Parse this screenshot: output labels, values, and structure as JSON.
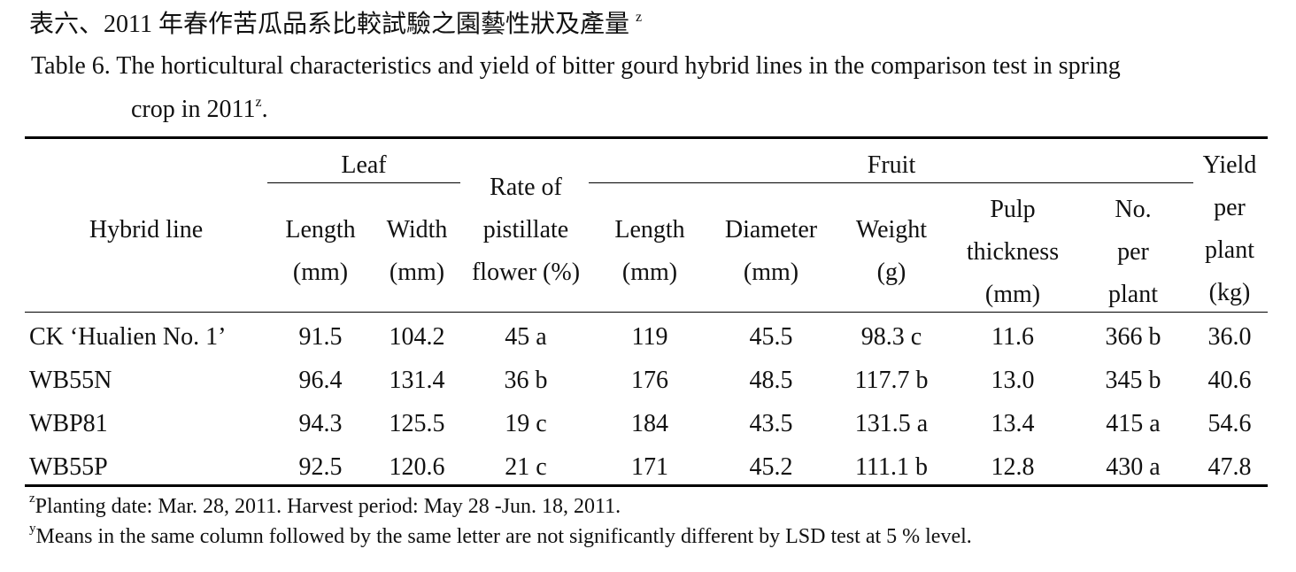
{
  "title": {
    "text": "表六、2011 年春作苦瓜品系比較試驗之園藝性狀及產量",
    "sup": "z"
  },
  "caption": {
    "label": "Table 6.",
    "lines": [
      "The horticultural characteristics and yield of bitter gourd hybrid lines in the comparison test in spring",
      "crop in 2011"
    ],
    "sup": "z",
    "end": "."
  },
  "table": {
    "groups": [
      {
        "label": "Leaf"
      },
      {
        "label": "Fruit"
      }
    ],
    "headers": [
      {
        "lines": [
          "Hybrid line"
        ]
      },
      {
        "lines": [
          "Length",
          "(mm)"
        ]
      },
      {
        "lines": [
          "Width",
          "(mm)"
        ]
      },
      {
        "lines": [
          "Rate of",
          "pistillate",
          "flower (%)"
        ]
      },
      {
        "lines": [
          "Length",
          "(mm)"
        ]
      },
      {
        "lines": [
          "Diameter",
          "(mm)"
        ]
      },
      {
        "lines": [
          "Weight",
          "(g)"
        ]
      },
      {
        "lines": [
          "Pulp",
          "thickness",
          "(mm)"
        ]
      },
      {
        "lines": [
          "No.",
          "per",
          "plant"
        ]
      },
      {
        "lines": [
          "Yield",
          "per",
          "plant",
          "(kg)"
        ]
      }
    ],
    "rows": [
      [
        "CK ‘Hualien No. 1’",
        "91.5",
        "104.2",
        "45 a",
        "119",
        "45.5",
        "98.3 c",
        "11.6",
        "366 b",
        "36.0"
      ],
      [
        "WB55N",
        "96.4",
        "131.4",
        "36 b",
        "176",
        "48.5",
        "117.7 b",
        "13.0",
        "345 b",
        "40.6"
      ],
      [
        "WBP81",
        "94.3",
        "125.5",
        "19 c",
        "184",
        "43.5",
        "131.5 a",
        "13.4",
        "415 a",
        "54.6"
      ],
      [
        "WB55P",
        "92.5",
        "120.6",
        "21 c",
        "171",
        "45.2",
        "111.1 b",
        "12.8",
        "430 a",
        "47.8"
      ]
    ]
  },
  "footnotes": [
    {
      "mark": "z",
      "text": "Planting date: Mar. 28, 2011. Harvest period: May 28 -Jun. 18, 2011."
    },
    {
      "mark": "y",
      "text": "Means in the same column followed by the same letter are not significantly different by LSD test at 5 % level."
    }
  ]
}
